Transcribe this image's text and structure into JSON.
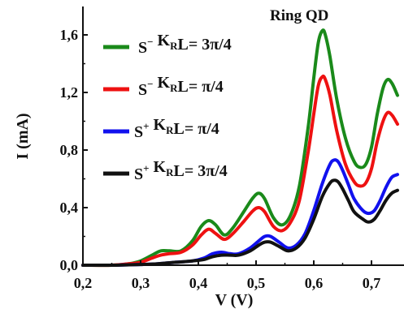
{
  "chart_data": {
    "type": "line",
    "title": "",
    "annotation": "Ring QD",
    "xlabel": "V (V)",
    "ylabel": "I (mA)",
    "xlim": [
      0.2,
      0.75
    ],
    "ylim": [
      0.0,
      1.75
    ],
    "x_ticks": [
      "0,2",
      "0,3",
      "0,4",
      "0,5",
      "0,6",
      "0,7"
    ],
    "x_tick_values": [
      0.2,
      0.3,
      0.4,
      0.5,
      0.6,
      0.7
    ],
    "y_ticks": [
      "0,0",
      "0,4",
      "0,8",
      "1,2",
      "1,6"
    ],
    "y_tick_values": [
      0.0,
      0.4,
      0.8,
      1.2,
      1.6
    ],
    "grid": false,
    "legend_position": "top-left",
    "legend": [
      {
        "parts": [
          [
            "S",
            "n"
          ],
          [
            "−",
            "sup"
          ],
          [
            " K",
            "n"
          ],
          [
            "R",
            "sub"
          ],
          [
            "L= 3π/4",
            "n"
          ]
        ]
      },
      {
        "parts": [
          [
            "S",
            "n"
          ],
          [
            "−",
            "sup"
          ],
          [
            " K",
            "n"
          ],
          [
            "R",
            "sub"
          ],
          [
            "L= π/4",
            "n"
          ]
        ]
      },
      {
        "parts": [
          [
            "S",
            "n"
          ],
          [
            "+",
            "sup"
          ],
          [
            " K",
            "n"
          ],
          [
            "R",
            "sub"
          ],
          [
            "L= π/4",
            "n"
          ]
        ]
      },
      {
        "parts": [
          [
            "S",
            "n"
          ],
          [
            "+",
            "sup"
          ],
          [
            " K",
            "n"
          ],
          [
            "R",
            "sub"
          ],
          [
            "L= 3π/4",
            "n"
          ]
        ]
      }
    ],
    "series": [
      {
        "color": "#1a8a1a",
        "x": [
          0.2,
          0.25,
          0.28,
          0.3,
          0.32,
          0.335,
          0.35,
          0.37,
          0.39,
          0.405,
          0.418,
          0.43,
          0.445,
          0.46,
          0.48,
          0.495,
          0.505,
          0.515,
          0.53,
          0.545,
          0.56,
          0.575,
          0.59,
          0.6,
          0.608,
          0.615,
          0.62,
          0.628,
          0.64,
          0.655,
          0.67,
          0.68,
          0.69,
          0.7,
          0.71,
          0.72,
          0.728,
          0.736,
          0.745
        ],
        "y": [
          0.0,
          0.0,
          0.01,
          0.03,
          0.07,
          0.1,
          0.1,
          0.1,
          0.17,
          0.27,
          0.31,
          0.28,
          0.21,
          0.26,
          0.38,
          0.47,
          0.5,
          0.46,
          0.33,
          0.28,
          0.35,
          0.55,
          0.95,
          1.3,
          1.55,
          1.63,
          1.6,
          1.45,
          1.15,
          0.88,
          0.72,
          0.68,
          0.7,
          0.82,
          1.05,
          1.23,
          1.29,
          1.26,
          1.18
        ]
      },
      {
        "color": "#ee1111",
        "x": [
          0.2,
          0.25,
          0.28,
          0.3,
          0.32,
          0.335,
          0.35,
          0.37,
          0.39,
          0.405,
          0.418,
          0.43,
          0.445,
          0.46,
          0.48,
          0.495,
          0.505,
          0.515,
          0.53,
          0.545,
          0.56,
          0.575,
          0.59,
          0.6,
          0.608,
          0.615,
          0.62,
          0.628,
          0.64,
          0.655,
          0.67,
          0.68,
          0.69,
          0.7,
          0.71,
          0.72,
          0.728,
          0.736,
          0.745
        ],
        "y": [
          0.0,
          0.0,
          0.01,
          0.02,
          0.05,
          0.07,
          0.08,
          0.09,
          0.14,
          0.21,
          0.25,
          0.22,
          0.18,
          0.22,
          0.31,
          0.38,
          0.4,
          0.37,
          0.27,
          0.24,
          0.3,
          0.45,
          0.78,
          1.05,
          1.25,
          1.31,
          1.29,
          1.18,
          0.93,
          0.7,
          0.58,
          0.55,
          0.57,
          0.67,
          0.86,
          1.0,
          1.06,
          1.04,
          0.98
        ]
      },
      {
        "color": "#1111ee",
        "x": [
          0.2,
          0.25,
          0.3,
          0.33,
          0.36,
          0.39,
          0.41,
          0.425,
          0.44,
          0.455,
          0.47,
          0.49,
          0.505,
          0.515,
          0.525,
          0.54,
          0.555,
          0.57,
          0.585,
          0.6,
          0.615,
          0.628,
          0.635,
          0.642,
          0.65,
          0.66,
          0.67,
          0.685,
          0.695,
          0.705,
          0.715,
          0.725,
          0.735,
          0.745
        ],
        "y": [
          0.0,
          0.0,
          0.005,
          0.01,
          0.02,
          0.03,
          0.05,
          0.08,
          0.09,
          0.08,
          0.08,
          0.12,
          0.17,
          0.2,
          0.2,
          0.16,
          0.12,
          0.14,
          0.22,
          0.38,
          0.57,
          0.7,
          0.73,
          0.72,
          0.66,
          0.56,
          0.46,
          0.38,
          0.36,
          0.38,
          0.45,
          0.54,
          0.61,
          0.63
        ]
      },
      {
        "color": "#111111",
        "x": [
          0.2,
          0.25,
          0.3,
          0.33,
          0.36,
          0.39,
          0.41,
          0.425,
          0.44,
          0.455,
          0.47,
          0.49,
          0.505,
          0.515,
          0.525,
          0.54,
          0.555,
          0.57,
          0.585,
          0.6,
          0.615,
          0.628,
          0.635,
          0.642,
          0.65,
          0.66,
          0.67,
          0.685,
          0.695,
          0.705,
          0.715,
          0.725,
          0.735,
          0.745
        ],
        "y": [
          0.0,
          0.0,
          0.005,
          0.01,
          0.02,
          0.03,
          0.04,
          0.06,
          0.07,
          0.07,
          0.07,
          0.1,
          0.14,
          0.16,
          0.16,
          0.13,
          0.1,
          0.12,
          0.19,
          0.32,
          0.48,
          0.57,
          0.59,
          0.58,
          0.53,
          0.45,
          0.37,
          0.32,
          0.3,
          0.32,
          0.38,
          0.45,
          0.5,
          0.52
        ]
      }
    ]
  }
}
